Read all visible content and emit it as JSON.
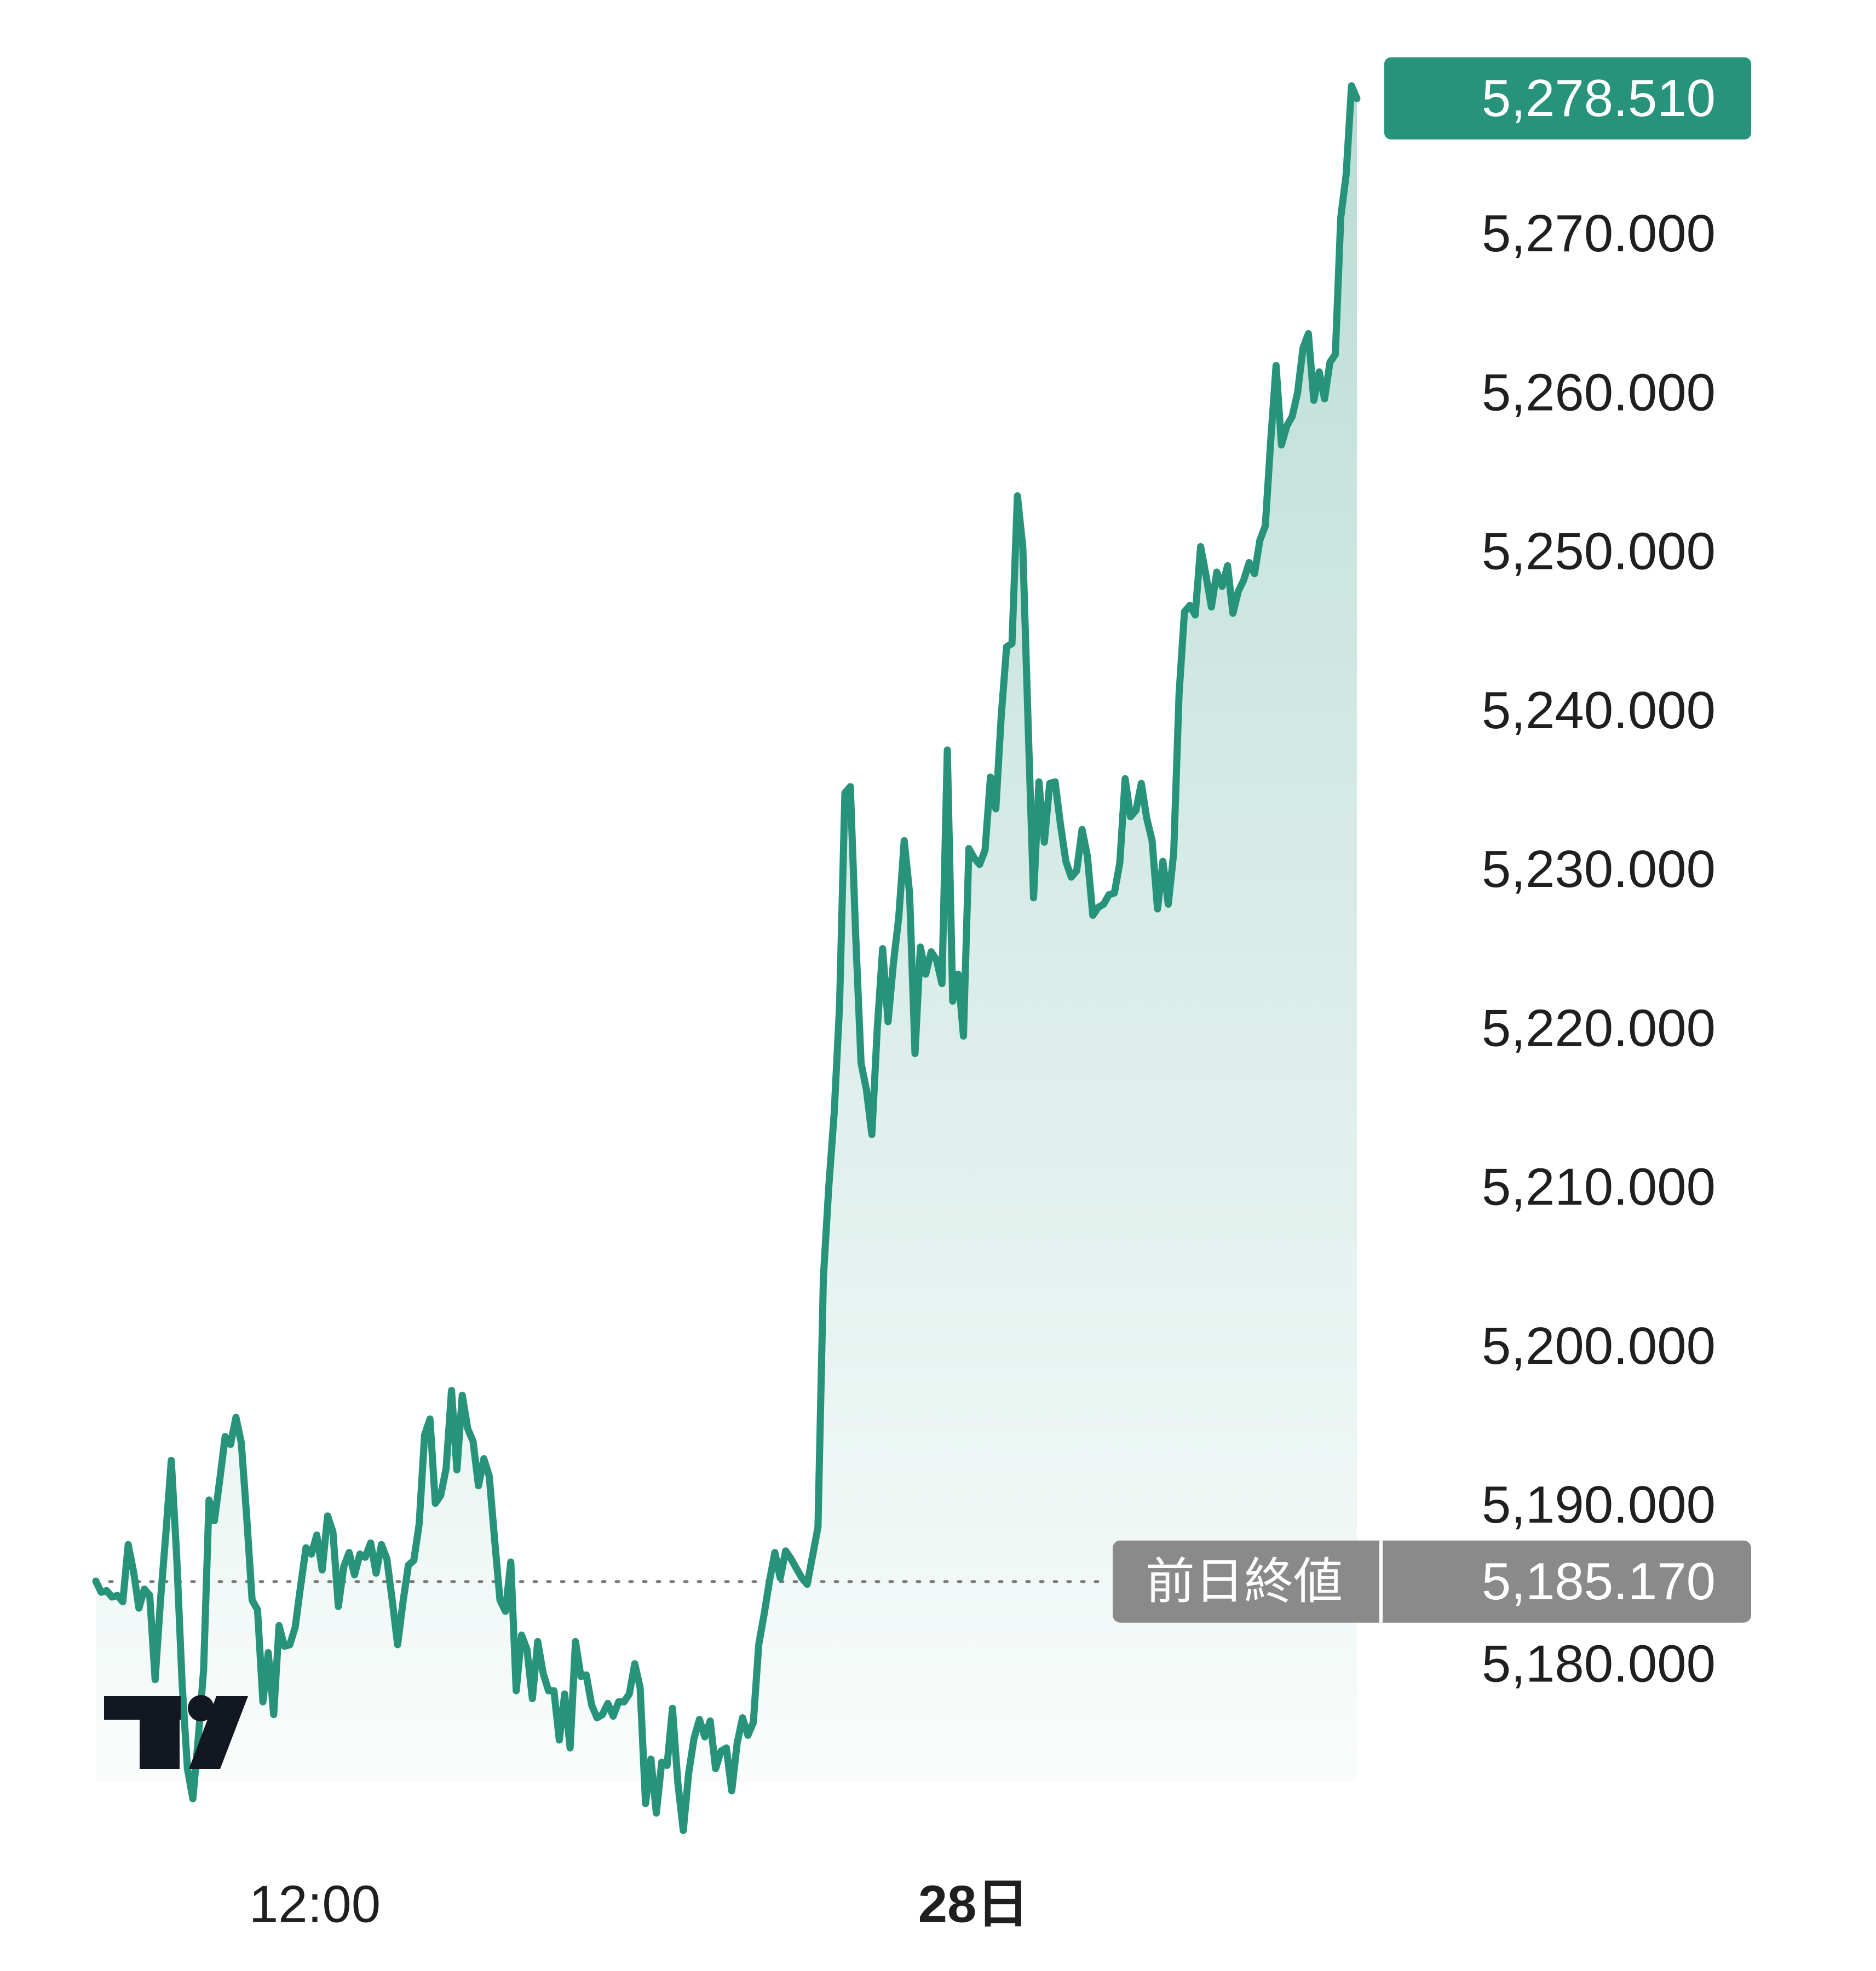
{
  "chart_data": {
    "type": "area",
    "title": "",
    "xlabel": "",
    "ylabel": "",
    "x_tick_labels": [
      "12:00",
      "28日"
    ],
    "y_tick_labels": [
      "5,270.000",
      "5,260.000",
      "5,250.000",
      "5,240.000",
      "5,230.000",
      "5,220.000",
      "5,210.000",
      "5,200.000",
      "5,190.000",
      "5,180.000"
    ],
    "y_ticks": [
      5270,
      5260,
      5250,
      5240,
      5230,
      5220,
      5210,
      5200,
      5190,
      5180
    ],
    "ylim": [
      5171,
      5281.6
    ],
    "grid": false,
    "y_axis_side": "right",
    "current_value": 5278.51,
    "current_value_label": "5,278.510",
    "previous_close": 5185.17,
    "previous_close_title": "前日終値",
    "previous_close_label": "5,185.170",
    "colors": {
      "line": "#26937a",
      "fill": "#26937a",
      "previous_close_tag": "#8a8a8a",
      "axis_text": "#1f1f1f"
    },
    "series": [
      {
        "values": [
          5185.2,
          5184.5,
          5184.6,
          5184.2,
          5184.3,
          5183.9,
          5187.5,
          5185.8,
          5183.5,
          5184.7,
          5184.3,
          5179.0,
          5184.0,
          5188.2,
          5192.8,
          5186.8,
          5178.8,
          5173.4,
          5171.5,
          5175.3,
          5179.6,
          5190.3,
          5189.0,
          5191.6,
          5194.3,
          5193.8,
          5195.5,
          5193.9,
          5189.2,
          5184.0,
          5183.4,
          5177.6,
          5180.7,
          5176.8,
          5182.4,
          5181.1,
          5181.2,
          5182.3,
          5184.9,
          5187.3,
          5186.9,
          5188.1,
          5185.9,
          5189.3,
          5188.3,
          5183.6,
          5186.1,
          5187.0,
          5185.6,
          5186.9,
          5186.7,
          5187.6,
          5185.7,
          5187.5,
          5186.6,
          5184.0,
          5181.2,
          5183.9,
          5186.2,
          5186.5,
          5188.8,
          5194.4,
          5195.4,
          5190.1,
          5190.6,
          5192.3,
          5197.2,
          5192.2,
          5196.9,
          5194.8,
          5194.0,
          5191.2,
          5192.9,
          5191.8,
          5187.8,
          5184.0,
          5183.3,
          5186.4,
          5178.3,
          5181.8,
          5180.9,
          5177.8,
          5181.4,
          5179.4,
          5178.3,
          5178.3,
          5175.2,
          5178.1,
          5174.7,
          5181.4,
          5179.2,
          5179.3,
          5177.4,
          5176.6,
          5176.8,
          5177.5,
          5176.7,
          5177.6,
          5177.6,
          5178.1,
          5180.0,
          5178.5,
          5171.2,
          5174.0,
          5170.6,
          5173.8,
          5173.6,
          5177.2,
          5172.5,
          5169.5,
          5173.1,
          5175.3,
          5176.5,
          5175.4,
          5176.4,
          5173.4,
          5174.5,
          5174.7,
          5172.0,
          5175.0,
          5176.6,
          5175.5,
          5176.3,
          5181.2,
          5183.1,
          5185.2,
          5187.0,
          5185.4,
          5187.1,
          5186.6,
          5186.0,
          5185.4,
          5185.0,
          5186.8,
          5188.6,
          5204.3,
          5210.0,
          5214.6,
          5221.4,
          5234.8,
          5235.2,
          5225.8,
          5217.8,
          5216.1,
          5213.3,
          5220.0,
          5225.0,
          5220.4,
          5224.1,
          5227.0,
          5231.8,
          5228.5,
          5218.4,
          5225.1,
          5223.4,
          5224.8,
          5224.3,
          5222.8,
          5237.5,
          5221.7,
          5223.4,
          5219.5,
          5231.3,
          5230.7,
          5230.3,
          5231.2,
          5235.8,
          5233.8,
          5239.6,
          5244.0,
          5244.2,
          5253.5,
          5250.3,
          5239.1,
          5228.2,
          5235.5,
          5231.7,
          5235.4,
          5235.5,
          5232.8,
          5230.5,
          5229.5,
          5229.9,
          5232.5,
          5230.8,
          5227.1,
          5227.6,
          5227.8,
          5228.4,
          5228.5,
          5230.4,
          5235.7,
          5233.3,
          5233.7,
          5235.4,
          5233.2,
          5231.8,
          5227.5,
          5230.5,
          5227.8,
          5231.0,
          5241.0,
          5246.2,
          5246.6,
          5246.0,
          5250.3,
          5248.5,
          5246.5,
          5248.7,
          5247.8,
          5249.1,
          5246.1,
          5247.5,
          5248.2,
          5249.3,
          5248.6,
          5250.7,
          5251.6,
          5256.9,
          5261.7,
          5256.7,
          5257.9,
          5258.5,
          5260.0,
          5262.8,
          5263.7,
          5259.5,
          5261.3,
          5259.6,
          5261.9,
          5262.4,
          5271.0,
          5273.7,
          5279.3,
          5278.5
        ]
      }
    ]
  },
  "watermark": {
    "logo": "TV"
  }
}
